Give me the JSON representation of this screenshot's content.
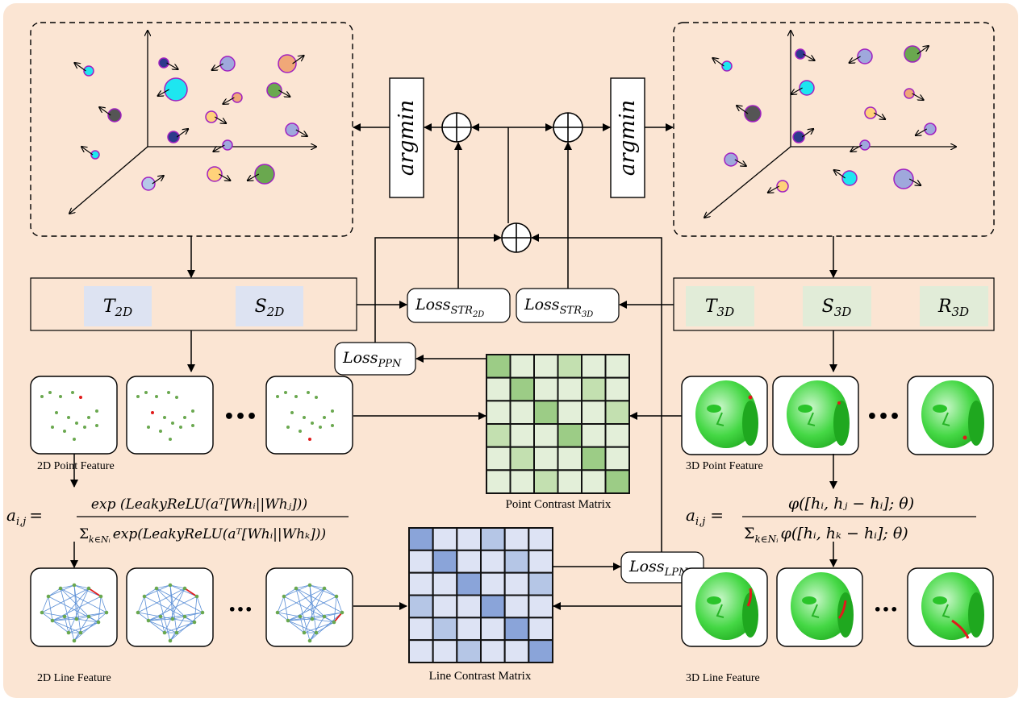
{
  "colors": {
    "background": "#fbe5d3",
    "ts2d_fill": "#dde3f2",
    "ts3d_fill": "#e1ecd8",
    "point_matrix_levels": [
      "#e3efd9",
      "#c3e0b0",
      "#9ccc86"
    ],
    "line_matrix_levels": [
      "#dde3f4",
      "#b5c6e6",
      "#8aa4d9"
    ],
    "face": "#3fd63f",
    "highlight": "#e01b1b",
    "graph_edge": "#5b8fd6",
    "graph_node": "#6aa84f"
  },
  "argmin": {
    "left": "argmin",
    "right": "argmin"
  },
  "space_2d": {
    "t": {
      "main": "T",
      "sub": "2D"
    },
    "s": {
      "main": "S",
      "sub": "2D"
    }
  },
  "space_3d": {
    "t": {
      "main": "T",
      "sub": "3D"
    },
    "s": {
      "main": "S",
      "sub": "3D"
    },
    "r": {
      "main": "R",
      "sub": "3D"
    }
  },
  "losses": {
    "str2d": {
      "main": "Loss",
      "sub": "STR",
      "subsub": "2D"
    },
    "str3d": {
      "main": "Loss",
      "sub": "STR",
      "subsub": "3D"
    },
    "ppn": {
      "main": "Loss",
      "sub": "PPN"
    },
    "lpn": {
      "main": "Loss",
      "sub": "LPN"
    }
  },
  "labels": {
    "point_2d": "2D Point Feature",
    "point_3d": "3D Point Feature",
    "line_2d": "2D Line Feature",
    "line_3d": "3D Line Feature",
    "point_matrix": "Point Contrast Matrix",
    "line_matrix": "Line Contrast Matrix",
    "ellipsis_point": "•••",
    "ellipsis_line": "•••"
  },
  "formula_2d": {
    "lhs": "a",
    "lhs_sub": "i,j",
    "eq": "=",
    "numerator": "exp (LeakyReLU(aᵀ[Whᵢ||Whⱼ]))",
    "denominator_sum": "Σ",
    "denominator_sub": "k∈Nᵢ",
    "denominator": "exp(LeakyReLU(aᵀ[Whᵢ||Whₖ]))"
  },
  "formula_3d": {
    "lhs": "a",
    "lhs_sub": "i,j",
    "eq": "=",
    "numerator": "φ([hᵢ, hⱼ − hᵢ];  θ)",
    "denominator_sum": "Σ",
    "denominator_sub": "k∈Nᵢ",
    "denominator": "φ([hᵢ, hₖ − hᵢ];  θ)"
  },
  "point_contrast_matrix": [
    [
      2,
      0,
      0,
      1,
      0,
      0
    ],
    [
      0,
      2,
      0,
      0,
      1,
      0
    ],
    [
      0,
      0,
      2,
      0,
      0,
      1
    ],
    [
      1,
      0,
      0,
      2,
      0,
      0
    ],
    [
      0,
      1,
      0,
      0,
      2,
      0
    ],
    [
      0,
      0,
      1,
      0,
      0,
      2
    ]
  ],
  "line_contrast_matrix": [
    [
      2,
      0,
      0,
      1,
      0,
      0
    ],
    [
      0,
      2,
      0,
      0,
      1,
      0
    ],
    [
      0,
      0,
      2,
      0,
      0,
      1
    ],
    [
      1,
      0,
      0,
      2,
      0,
      0
    ],
    [
      0,
      1,
      0,
      0,
      2,
      0
    ],
    [
      0,
      0,
      1,
      0,
      0,
      2
    ]
  ]
}
